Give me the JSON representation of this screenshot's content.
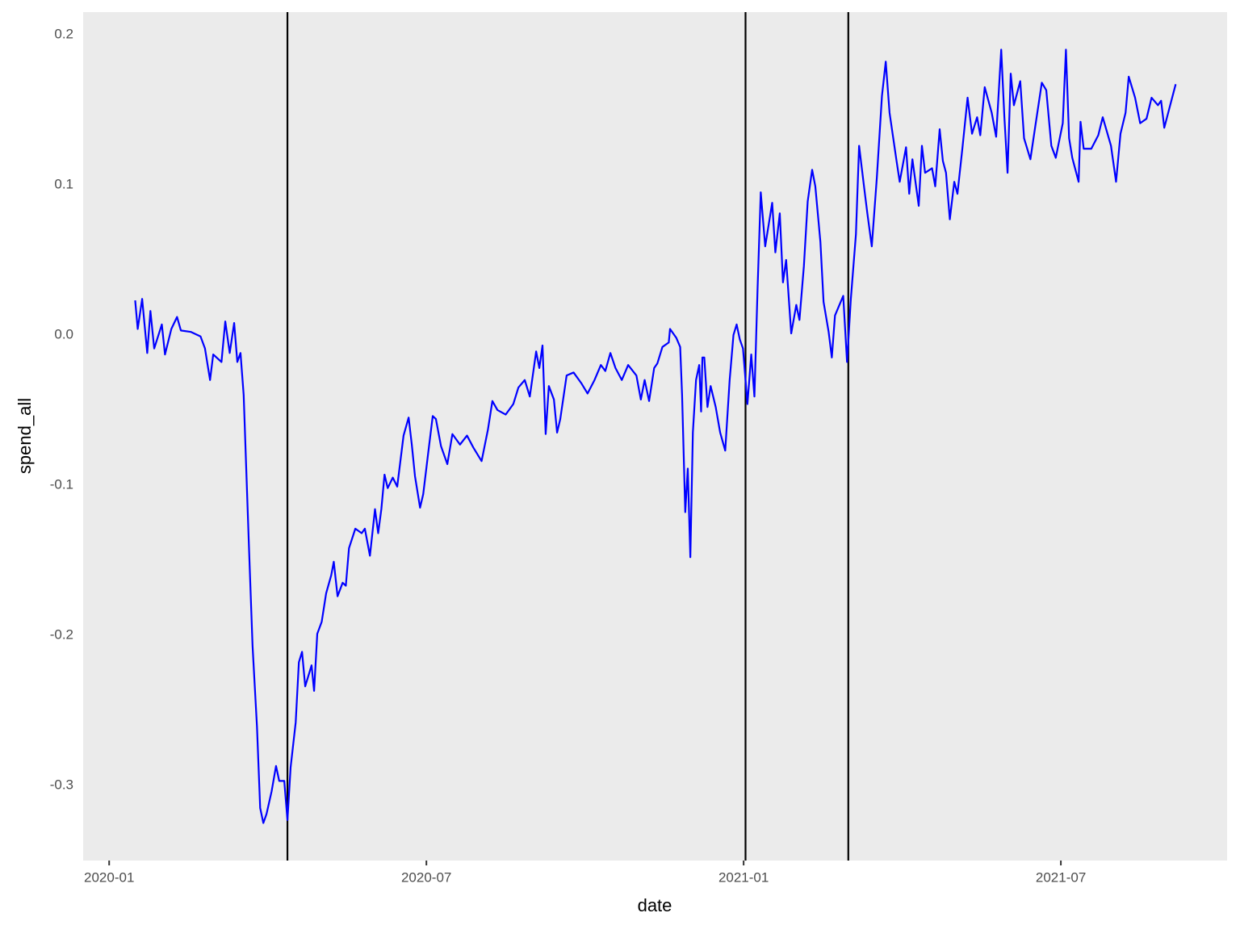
{
  "chart_data": {
    "type": "line",
    "x_label": "date",
    "y_label": "spend_all",
    "x": [
      2020.041,
      2020.045,
      2020.052,
      2020.06,
      2020.065,
      2020.071,
      2020.083,
      2020.088,
      2020.098,
      2020.107,
      2020.113,
      2020.129,
      2020.144,
      2020.151,
      2020.159,
      2020.164,
      2020.177,
      2020.183,
      2020.19,
      2020.197,
      2020.202,
      2020.207,
      2020.212,
      2020.22,
      2020.226,
      2020.233,
      2020.238,
      2020.243,
      2020.248,
      2020.256,
      2020.263,
      2020.268,
      2020.276,
      2020.281,
      2020.286,
      2020.294,
      2020.299,
      2020.304,
      2020.309,
      2020.319,
      2020.323,
      2020.328,
      2020.335,
      2020.342,
      2020.35,
      2020.354,
      2020.36,
      2020.368,
      2020.373,
      2020.378,
      2020.388,
      2020.398,
      2020.403,
      2020.411,
      2020.419,
      2020.424,
      2020.429,
      2020.434,
      2020.439,
      2020.447,
      2020.454,
      2020.464,
      2020.472,
      2020.477,
      2020.482,
      2020.49,
      2020.495,
      2020.503,
      2020.51,
      2020.515,
      2020.523,
      2020.533,
      2020.541,
      2020.553,
      2020.564,
      2020.574,
      2020.587,
      2020.597,
      2020.604,
      2020.612,
      2020.625,
      2020.637,
      2020.645,
      2020.655,
      2020.663,
      2020.673,
      2020.678,
      2020.683,
      2020.688,
      2020.693,
      2020.701,
      2020.706,
      2020.711,
      2020.721,
      2020.732,
      2020.744,
      2020.754,
      2020.765,
      2020.775,
      2020.782,
      2020.79,
      2020.798,
      2020.808,
      2020.818,
      2020.831,
      2020.838,
      2020.844,
      2020.851,
      2020.859,
      2020.864,
      2020.872,
      2020.882,
      2020.884,
      2020.894,
      2020.9,
      2020.903,
      2020.908,
      2020.912,
      2020.916,
      2020.92,
      2020.925,
      2020.93,
      2020.933,
      2020.935,
      2020.938,
      2020.943,
      2020.948,
      2020.956,
      2020.963,
      2020.971,
      2020.978,
      2020.984,
      2020.989,
      2020.994,
      2020.999,
      2021.006,
      2021.012,
      2021.017,
      2021.022,
      2021.027,
      2021.034,
      2021.045,
      2021.05,
      2021.057,
      2021.062,
      2021.067,
      2021.075,
      2021.083,
      2021.088,
      2021.095,
      2021.101,
      2021.108,
      2021.113,
      2021.121,
      2021.126,
      2021.134,
      2021.139,
      2021.144,
      2021.151,
      2021.157,
      2021.163,
      2021.169,
      2021.177,
      2021.182,
      2021.19,
      2021.195,
      2021.202,
      2021.21,
      2021.218,
      2021.224,
      2021.23,
      2021.241,
      2021.246,
      2021.256,
      2021.261,
      2021.266,
      2021.276,
      2021.281,
      2021.286,
      2021.297,
      2021.302,
      2021.309,
      2021.314,
      2021.319,
      2021.325,
      2021.332,
      2021.337,
      2021.345,
      2021.353,
      2021.36,
      2021.368,
      2021.373,
      2021.38,
      2021.391,
      2021.398,
      2021.406,
      2021.411,
      2021.416,
      2021.421,
      2021.426,
      2021.436,
      2021.442,
      2021.452,
      2021.459,
      2021.47,
      2021.477,
      2021.485,
      2021.492,
      2021.503,
      2021.508,
      2021.513,
      2021.518,
      2021.528,
      2021.531,
      2021.536,
      2021.548,
      2021.559,
      2021.566,
      2021.579,
      2021.587,
      2021.594,
      2021.602,
      2021.607,
      2021.617,
      2021.625,
      2021.635,
      2021.643,
      2021.653,
      2021.658,
      2021.663,
      2021.681
    ],
    "series": [
      {
        "name": "spend_all",
        "color": "#0000ff",
        "values": [
          0.023,
          0.004,
          0.024,
          -0.012,
          0.016,
          -0.009,
          0.007,
          -0.013,
          0.004,
          0.012,
          0.003,
          0.002,
          -0.001,
          -0.009,
          -0.03,
          -0.013,
          -0.018,
          0.009,
          -0.012,
          0.008,
          -0.018,
          -0.012,
          -0.04,
          -0.137,
          -0.207,
          -0.261,
          -0.315,
          -0.325,
          -0.319,
          -0.304,
          -0.287,
          -0.297,
          -0.297,
          -0.323,
          -0.288,
          -0.258,
          -0.218,
          -0.211,
          -0.234,
          -0.22,
          -0.237,
          -0.199,
          -0.191,
          -0.172,
          -0.16,
          -0.151,
          -0.174,
          -0.165,
          -0.167,
          -0.142,
          -0.129,
          -0.132,
          -0.129,
          -0.147,
          -0.116,
          -0.132,
          -0.116,
          -0.093,
          -0.102,
          -0.095,
          -0.101,
          -0.067,
          -0.055,
          -0.073,
          -0.094,
          -0.115,
          -0.106,
          -0.078,
          -0.054,
          -0.056,
          -0.074,
          -0.086,
          -0.066,
          -0.073,
          -0.067,
          -0.075,
          -0.084,
          -0.063,
          -0.044,
          -0.05,
          -0.053,
          -0.046,
          -0.035,
          -0.03,
          -0.041,
          -0.011,
          -0.022,
          -0.007,
          -0.066,
          -0.034,
          -0.043,
          -0.065,
          -0.056,
          -0.027,
          -0.025,
          -0.032,
          -0.039,
          -0.03,
          -0.02,
          -0.024,
          -0.012,
          -0.022,
          -0.03,
          -0.02,
          -0.027,
          -0.043,
          -0.03,
          -0.044,
          -0.022,
          -0.019,
          -0.008,
          -0.005,
          0.004,
          -0.002,
          -0.008,
          -0.04,
          -0.118,
          -0.089,
          -0.148,
          -0.065,
          -0.03,
          -0.02,
          -0.051,
          -0.015,
          -0.015,
          -0.048,
          -0.034,
          -0.048,
          -0.065,
          -0.077,
          -0.03,
          0.0,
          0.007,
          -0.003,
          -0.009,
          -0.046,
          -0.013,
          -0.041,
          0.031,
          0.095,
          0.059,
          0.088,
          0.055,
          0.081,
          0.035,
          0.05,
          0.001,
          0.02,
          0.01,
          0.046,
          0.089,
          0.11,
          0.099,
          0.062,
          0.022,
          0.002,
          -0.015,
          0.013,
          0.02,
          0.026,
          -0.018,
          0.024,
          0.067,
          0.126,
          0.098,
          0.081,
          0.059,
          0.105,
          0.159,
          0.182,
          0.148,
          0.116,
          0.102,
          0.125,
          0.094,
          0.117,
          0.086,
          0.126,
          0.108,
          0.111,
          0.099,
          0.137,
          0.116,
          0.108,
          0.077,
          0.102,
          0.094,
          0.125,
          0.158,
          0.134,
          0.145,
          0.133,
          0.165,
          0.148,
          0.132,
          0.19,
          0.145,
          0.108,
          0.174,
          0.153,
          0.169,
          0.131,
          0.117,
          0.137,
          0.168,
          0.163,
          0.126,
          0.118,
          0.141,
          0.19,
          0.131,
          0.118,
          0.102,
          0.142,
          0.124,
          0.124,
          0.133,
          0.145,
          0.126,
          0.102,
          0.134,
          0.148,
          0.172,
          0.158,
          0.141,
          0.144,
          0.158,
          0.153,
          0.156,
          0.138,
          0.167
        ]
      }
    ],
    "vlines": [
      2020.281,
      2021.003,
      2021.165
    ],
    "vline_color": "#000000",
    "xlim": [
      2019.959,
      2021.762
    ],
    "xticks": [
      {
        "value": 2020.0,
        "label": "2020-01"
      },
      {
        "value": 2020.5,
        "label": "2020-07"
      },
      {
        "value": 2021.0,
        "label": "2021-01"
      },
      {
        "value": 2021.5,
        "label": "2021-07"
      }
    ],
    "x_minor_ticks": [
      2020.25,
      2020.75,
      2021.25,
      2021.75
    ],
    "ylim": [
      -0.35,
      0.215
    ],
    "yticks": [
      0.2,
      0.1,
      {
        "value": 0,
        "label": "0.0"
      },
      -0.1,
      -0.2,
      -0.3
    ],
    "y_minor_ticks": [
      0.15,
      0.05,
      -0.05,
      -0.15,
      -0.25
    ],
    "grid": true
  }
}
